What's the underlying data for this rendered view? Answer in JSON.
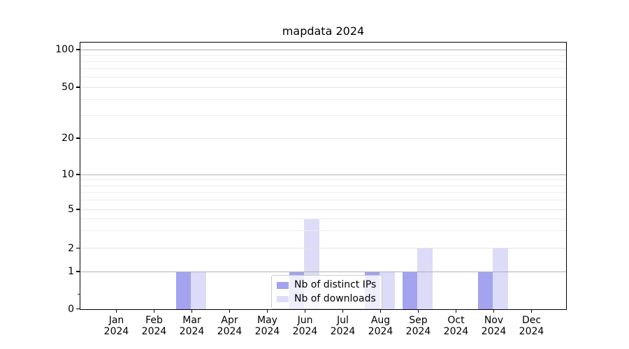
{
  "title": "mapdata 2024",
  "chart_data": {
    "type": "bar",
    "title": "mapdata 2024",
    "xlabel": "",
    "ylabel": "",
    "categories": [
      "Jan 2024",
      "Feb 2024",
      "Mar 2024",
      "Apr 2024",
      "May 2024",
      "Jun 2024",
      "Jul 2024",
      "Aug 2024",
      "Sep 2024",
      "Oct 2024",
      "Nov 2024",
      "Dec 2024"
    ],
    "series": [
      {
        "name": "Nb of distinct IPs",
        "color": "#a3a3ef",
        "values": [
          0,
          0,
          1,
          0,
          0,
          1,
          0,
          1,
          1,
          0,
          1,
          0
        ]
      },
      {
        "name": "Nb of downloads",
        "color": "#dcdcf8",
        "values": [
          0,
          0,
          1,
          0,
          0,
          4,
          0,
          1,
          2,
          0,
          2,
          0
        ]
      }
    ],
    "yscale": "symlog",
    "ylim": [
      0,
      110
    ],
    "grid": true,
    "legend_position": "lower center",
    "y_axis": {
      "tick_labels": [
        "100",
        "50",
        "20",
        "10",
        "5",
        "2",
        "1",
        "0"
      ],
      "tick_values": [
        100,
        50,
        20,
        10,
        5,
        2,
        1,
        0
      ],
      "major_grid_values": [
        100,
        10,
        1
      ],
      "soft_grid_values": [
        50,
        20,
        5,
        2
      ],
      "minor_grid_values": [
        90,
        80,
        70,
        60,
        40,
        30,
        9,
        8,
        7,
        6,
        4,
        3
      ]
    }
  },
  "legend": {
    "items": [
      {
        "label": "Nb of distinct IPs",
        "color": "#a3a3ef"
      },
      {
        "label": "Nb of downloads",
        "color": "#dcdcf8"
      }
    ]
  },
  "colors": {
    "background": "#ffffff",
    "spine": "#000000",
    "grid_major": "#b0b0b0",
    "grid_soft": "#e3e3e3",
    "grid_minor": "#ececec",
    "text": "#000000"
  }
}
